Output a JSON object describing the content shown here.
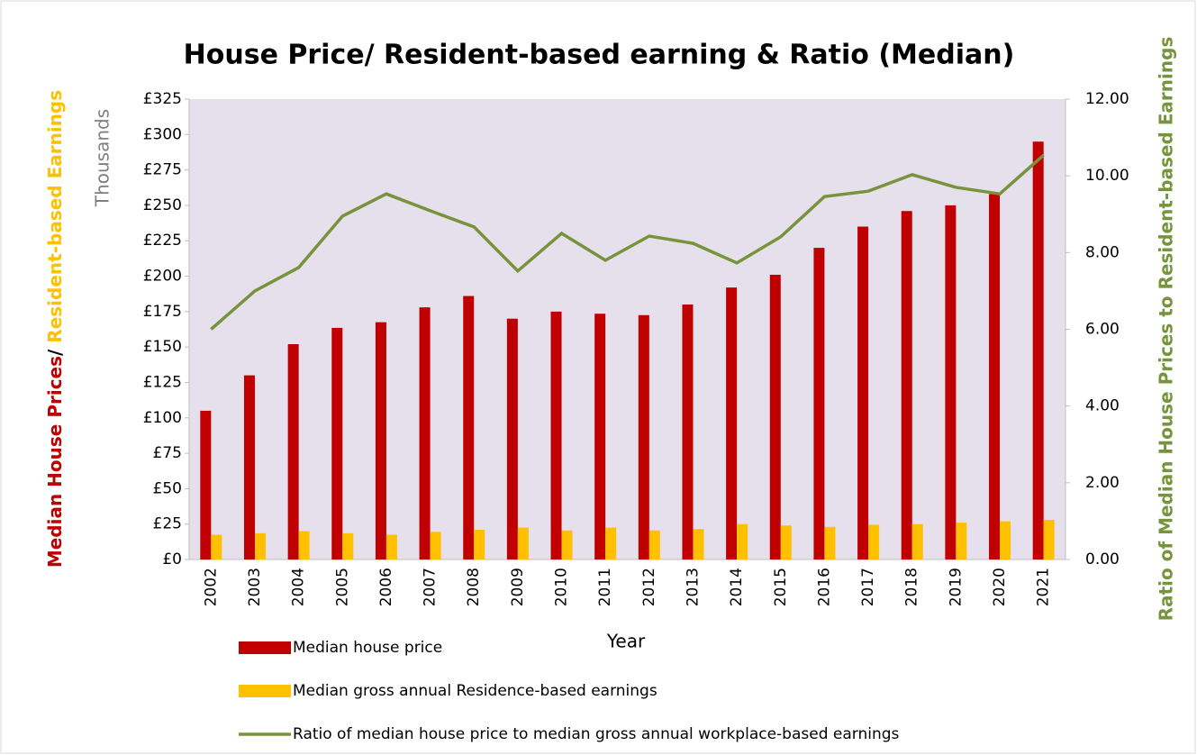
{
  "chart_data": {
    "type": "bar",
    "title": "House Price/ Resident-based earning & Ratio (Median)",
    "y_label_parts": [
      "Median House Prices",
      "/ ",
      "Resident-based Earnings"
    ],
    "y_label_colors": [
      "#c00000",
      "#000000",
      "#ffc000"
    ],
    "y_units": "Thousands",
    "y2_label": "Ratio of Median House Prices to Resident-based Earnings",
    "x_label": "Year",
    "categories": [
      "2002",
      "2003",
      "2004",
      "2005",
      "2006",
      "2007",
      "2008",
      "2009",
      "2010",
      "2011",
      "2012",
      "2013",
      "2014",
      "2015",
      "2016",
      "2017",
      "2018",
      "2019",
      "2020",
      "2021"
    ],
    "series": [
      {
        "name": "Median house price",
        "type": "bar",
        "color": "#c00000",
        "values": [
          105,
          130,
          152,
          163.5,
          167.5,
          178,
          186,
          170,
          175,
          173.5,
          172.5,
          180,
          192,
          201,
          220,
          235,
          246,
          250,
          258,
          295
        ]
      },
      {
        "name": "Median gross annual Residence-based earnings",
        "type": "bar",
        "color": "#ffc000",
        "values": [
          17.5,
          18.5,
          20,
          18.5,
          17.5,
          19.5,
          21,
          22.5,
          20.5,
          22.5,
          20.5,
          21.5,
          25,
          24,
          23,
          24.5,
          25,
          26,
          27,
          28
        ]
      },
      {
        "name": "Ratio of median house price to median gross annual workplace-based earnings",
        "type": "line",
        "axis": "y2",
        "color": "#77933c",
        "values": [
          6.0,
          7.0,
          7.61,
          8.95,
          9.53,
          9.09,
          8.67,
          7.52,
          8.5,
          7.8,
          8.43,
          8.24,
          7.73,
          8.41,
          9.46,
          9.6,
          10.03,
          9.7,
          9.53,
          10.54
        ]
      }
    ],
    "ylim": [
      0,
      325
    ],
    "yticks": [
      {
        "value": 0,
        "label": "£0"
      },
      {
        "value": 25,
        "label": "£25"
      },
      {
        "value": 50,
        "label": "£50"
      },
      {
        "value": 75,
        "label": "£75"
      },
      {
        "value": 100,
        "label": "£100"
      },
      {
        "value": 125,
        "label": "£125"
      },
      {
        "value": 150,
        "label": "£150"
      },
      {
        "value": 175,
        "label": "£175"
      },
      {
        "value": 200,
        "label": "£200"
      },
      {
        "value": 225,
        "label": "£225"
      },
      {
        "value": 250,
        "label": "£250"
      },
      {
        "value": 275,
        "label": "£275"
      },
      {
        "value": 300,
        "label": "£300"
      },
      {
        "value": 325,
        "label": "£325"
      }
    ],
    "y2lim": [
      0,
      12
    ],
    "y2ticks": [
      {
        "value": 0,
        "label": "0.00"
      },
      {
        "value": 2,
        "label": "2.00"
      },
      {
        "value": 4,
        "label": "4.00"
      },
      {
        "value": 6,
        "label": "6.00"
      },
      {
        "value": 8,
        "label": "8.00"
      },
      {
        "value": 10,
        "label": "10.00"
      },
      {
        "value": 12,
        "label": "12.00"
      }
    ],
    "plot_background": "#e6e0ec",
    "legend": "bottom"
  }
}
